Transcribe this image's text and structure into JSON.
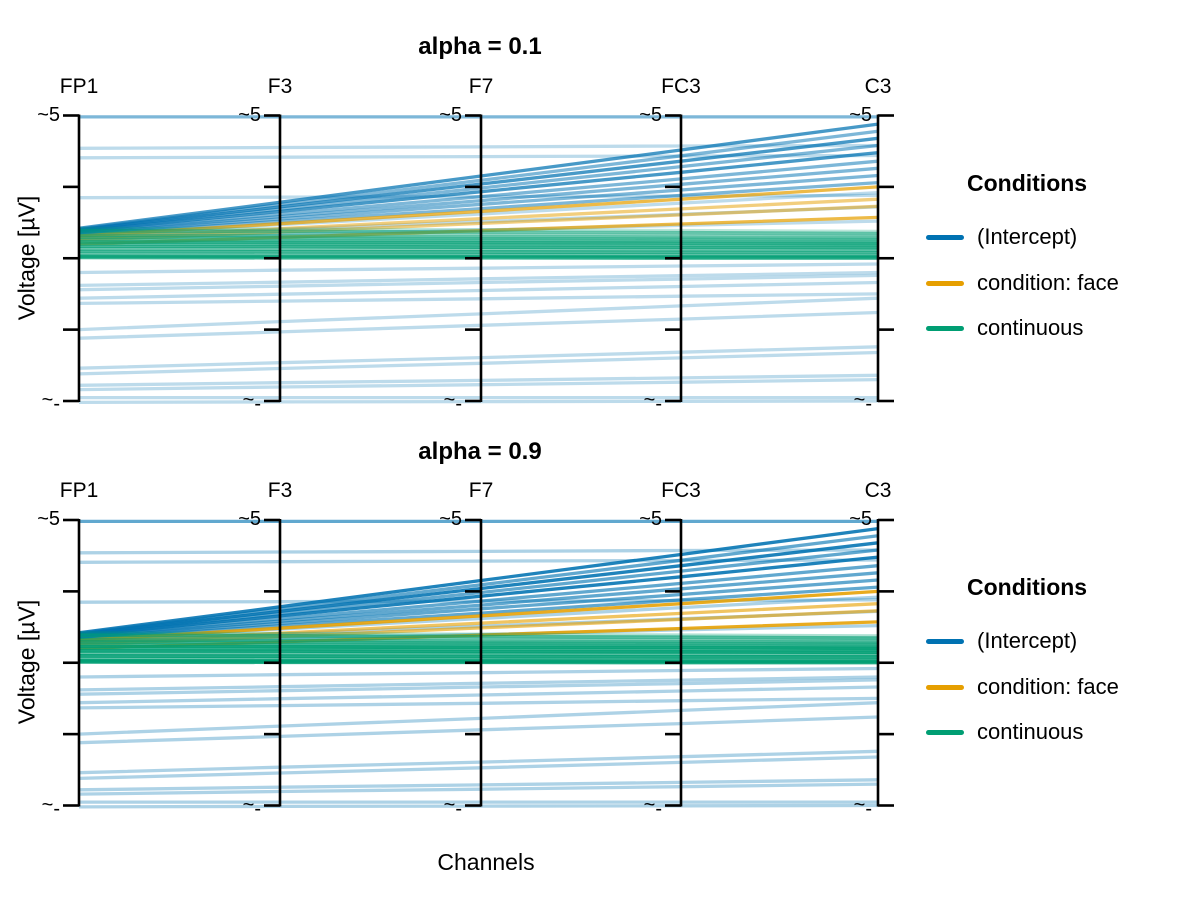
{
  "figure": {
    "background": "#ffffff"
  },
  "chart_data": {
    "type": "line",
    "subtype": "parallel-coordinates",
    "panels": [
      {
        "title": "alpha = 0.1",
        "alpha": 0.1
      },
      {
        "title": "alpha = 0.9",
        "alpha": 0.9
      }
    ],
    "channels": [
      "FP1",
      "F3",
      "F7",
      "FC3",
      "C3"
    ],
    "xlabel": "Channels",
    "ylabel": "Voltage [µV]",
    "axis_ticks": {
      "top_label": "~5",
      "bottom_label": "~-",
      "top_value": 5,
      "bottom_value": -5,
      "ticks_per_axis": 5
    },
    "grid": false,
    "legend": {
      "title": "Conditions",
      "position": "right",
      "entries": [
        {
          "label": "(Intercept)",
          "color": "#0072B2"
        },
        {
          "label": "condition: face",
          "color": "#E69F00"
        },
        {
          "label": "continuous",
          "color": "#009E73"
        }
      ]
    },
    "series": [
      {
        "condition": "(Intercept)",
        "shade": "mid",
        "values": [
          4.95,
          4.95,
          4.95,
          4.95,
          4.95
        ]
      },
      {
        "condition": "(Intercept)",
        "shade": "light",
        "values": [
          3.85,
          3.88,
          3.9,
          3.93,
          3.95
        ]
      },
      {
        "condition": "(Intercept)",
        "shade": "light",
        "values": [
          3.52,
          3.54,
          3.56,
          3.58,
          3.6
        ]
      },
      {
        "condition": "(Intercept)",
        "shade": "light",
        "values": [
          2.12,
          2.14,
          2.16,
          2.18,
          2.2
        ]
      },
      {
        "condition": "(Intercept)",
        "shade": "dark",
        "values": [
          1.05,
          1.96,
          2.88,
          3.79,
          4.7
        ]
      },
      {
        "condition": "(Intercept)",
        "shade": "mid",
        "values": [
          1.02,
          1.88,
          2.73,
          3.59,
          4.45
        ]
      },
      {
        "condition": "(Intercept)",
        "shade": "dark",
        "values": [
          1.0,
          1.8,
          2.6,
          3.4,
          4.2
        ]
      },
      {
        "condition": "(Intercept)",
        "shade": "mid",
        "values": [
          0.98,
          1.72,
          2.46,
          3.21,
          3.95
        ]
      },
      {
        "condition": "(Intercept)",
        "shade": "dark",
        "values": [
          0.95,
          1.64,
          2.33,
          3.01,
          3.7
        ]
      },
      {
        "condition": "(Intercept)",
        "shade": "mid",
        "values": [
          0.92,
          1.54,
          2.16,
          2.78,
          3.4
        ]
      },
      {
        "condition": "(Intercept)",
        "shade": "mid",
        "values": [
          0.9,
          1.46,
          2.02,
          2.59,
          3.15
        ]
      },
      {
        "condition": "(Intercept)",
        "shade": "mid",
        "values": [
          0.87,
          1.38,
          1.89,
          2.39,
          2.9
        ]
      },
      {
        "condition": "(Intercept)",
        "shade": "mid",
        "values": [
          0.84,
          1.29,
          1.74,
          2.2,
          2.65
        ]
      },
      {
        "condition": "(Intercept)",
        "shade": "light",
        "values": [
          0.8,
          1.18,
          1.55,
          1.93,
          2.3
        ]
      },
      {
        "condition": "(Intercept)",
        "shade": "light",
        "values": [
          0.75,
          1.01,
          1.28,
          1.54,
          1.8
        ]
      },
      {
        "condition": "(Intercept)",
        "shade": "light",
        "values": [
          0.68,
          0.84,
          0.99,
          1.15,
          1.3
        ]
      },
      {
        "condition": "(Intercept)",
        "shade": "light",
        "values": [
          -0.5,
          -0.42,
          -0.35,
          -0.27,
          -0.2
        ]
      },
      {
        "condition": "(Intercept)",
        "shade": "light",
        "values": [
          -0.95,
          -0.84,
          -0.72,
          -0.61,
          -0.5
        ]
      },
      {
        "condition": "(Intercept)",
        "shade": "light",
        "values": [
          -1.1,
          -0.98,
          -0.85,
          -0.73,
          -0.6
        ]
      },
      {
        "condition": "(Intercept)",
        "shade": "light",
        "values": [
          -1.4,
          -1.26,
          -1.13,
          -0.99,
          -0.85
        ]
      },
      {
        "condition": "(Intercept)",
        "shade": "light",
        "values": [
          -1.58,
          -1.5,
          -1.42,
          -1.33,
          -1.25
        ]
      },
      {
        "condition": "(Intercept)",
        "shade": "light",
        "values": [
          -2.5,
          -2.22,
          -1.95,
          -1.67,
          -1.4
        ]
      },
      {
        "condition": "(Intercept)",
        "shade": "light",
        "values": [
          -2.8,
          -2.58,
          -2.35,
          -2.13,
          -1.9
        ]
      },
      {
        "condition": "(Intercept)",
        "shade": "light",
        "values": [
          -3.85,
          -3.66,
          -3.48,
          -3.29,
          -3.1
        ]
      },
      {
        "condition": "(Intercept)",
        "shade": "light",
        "values": [
          -4.05,
          -3.86,
          -3.68,
          -3.49,
          -3.3
        ]
      },
      {
        "condition": "(Intercept)",
        "shade": "light",
        "values": [
          -4.45,
          -4.36,
          -4.28,
          -4.19,
          -4.1
        ]
      },
      {
        "condition": "(Intercept)",
        "shade": "light",
        "values": [
          -4.6,
          -4.51,
          -4.43,
          -4.34,
          -4.25
        ]
      },
      {
        "condition": "(Intercept)",
        "shade": "light",
        "values": [
          -4.88,
          -4.88,
          -4.88,
          -4.88,
          -4.88
        ]
      },
      {
        "condition": "(Intercept)",
        "shade": "light",
        "values": [
          -5.05,
          -5.03,
          -5.02,
          -5.01,
          -5.0
        ]
      },
      {
        "condition": "condition: face",
        "shade": "dark",
        "values": [
          0.78,
          1.21,
          1.64,
          2.07,
          2.5
        ]
      },
      {
        "condition": "condition: face",
        "shade": "mid",
        "values": [
          0.7,
          1.04,
          1.39,
          1.73,
          2.07
        ]
      },
      {
        "condition": "condition: face",
        "shade": "mid",
        "values": [
          0.62,
          0.92,
          1.22,
          1.52,
          1.82
        ]
      },
      {
        "condition": "condition: face",
        "shade": "dark",
        "values": [
          0.5,
          0.73,
          0.97,
          1.2,
          1.43
        ]
      },
      {
        "condition": "continuous",
        "shade": "light",
        "values": [
          1.04,
          1.01,
          0.99,
          0.96,
          0.93
        ]
      },
      {
        "condition": "continuous",
        "shade": "mid",
        "values": [
          0.96,
          0.94,
          0.91,
          0.89,
          0.86
        ]
      },
      {
        "condition": "continuous",
        "shade": "light",
        "values": [
          0.88,
          0.86,
          0.84,
          0.81,
          0.79
        ]
      },
      {
        "condition": "continuous",
        "shade": "mid",
        "values": [
          0.8,
          0.78,
          0.76,
          0.74,
          0.72
        ]
      },
      {
        "condition": "continuous",
        "shade": "mid",
        "values": [
          0.73,
          0.71,
          0.69,
          0.67,
          0.65
        ]
      },
      {
        "condition": "continuous",
        "shade": "mid",
        "values": [
          0.65,
          0.63,
          0.62,
          0.6,
          0.58
        ]
      },
      {
        "condition": "continuous",
        "shade": "dark",
        "values": [
          0.57,
          0.56,
          0.54,
          0.53,
          0.51
        ]
      },
      {
        "condition": "continuous",
        "shade": "mid",
        "values": [
          0.5,
          0.48,
          0.47,
          0.45,
          0.44
        ]
      },
      {
        "condition": "continuous",
        "shade": "dark",
        "values": [
          0.42,
          0.41,
          0.39,
          0.38,
          0.37
        ]
      },
      {
        "condition": "continuous",
        "shade": "mid",
        "values": [
          0.33,
          0.32,
          0.31,
          0.3,
          0.29
        ]
      },
      {
        "condition": "continuous",
        "shade": "dark",
        "values": [
          0.24,
          0.23,
          0.22,
          0.21,
          0.2
        ]
      },
      {
        "condition": "continuous",
        "shade": "mid",
        "values": [
          0.14,
          0.13,
          0.12,
          0.11,
          0.1
        ]
      },
      {
        "condition": "continuous",
        "shade": "dark",
        "values": [
          0.07,
          0.06,
          0.06,
          0.05,
          0.05
        ]
      },
      {
        "condition": "continuous",
        "shade": "dark",
        "values": [
          0.03,
          0.02,
          0.02,
          0.01,
          0.01
        ]
      }
    ]
  }
}
